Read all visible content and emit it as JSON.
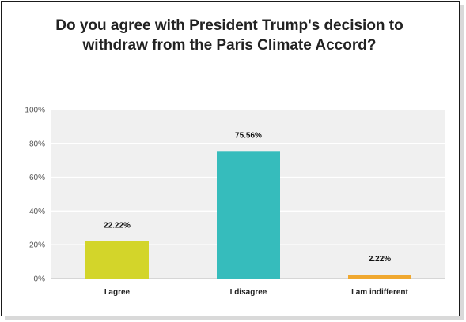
{
  "chart_data": {
    "type": "bar",
    "title": "Do you agree with President Trump's decision to withdraw from the Paris Climate Accord?",
    "categories": [
      "I agree",
      "I disagree",
      "I am indifferent"
    ],
    "values": [
      22.22,
      75.56,
      2.22
    ],
    "value_labels": [
      "22.22%",
      "75.56%",
      "2.22%"
    ],
    "colors": [
      "#d3d52a",
      "#36bcbc",
      "#f0a830"
    ],
    "ylim": [
      0,
      100
    ],
    "yticks": [
      0,
      20,
      40,
      60,
      80,
      100
    ],
    "ytick_labels": [
      "0%",
      "20%",
      "40%",
      "60%",
      "80%",
      "100%"
    ],
    "xlabel": "",
    "ylabel": "",
    "grid": true,
    "legend": "none"
  }
}
